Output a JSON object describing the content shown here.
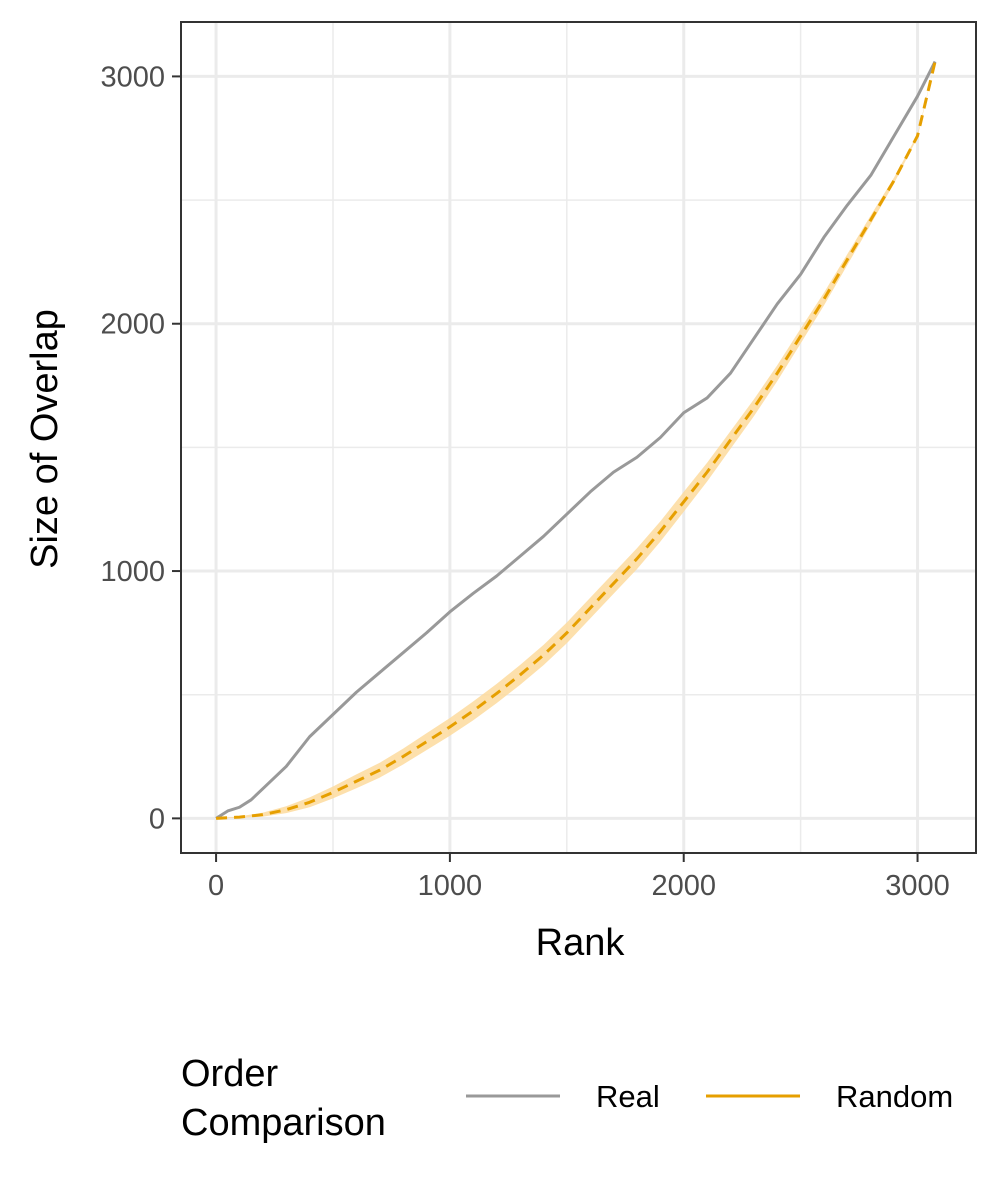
{
  "chart_data": {
    "type": "line",
    "xlabel": "Rank",
    "ylabel": "Size of Overlap",
    "xlim": [
      -150,
      3250
    ],
    "ylim": [
      -140,
      3220
    ],
    "x_ticks": [
      0,
      1000,
      2000,
      3000
    ],
    "x_tick_labels": [
      "0",
      "1000",
      "2000",
      "3000"
    ],
    "y_ticks": [
      0,
      1000,
      2000,
      3000
    ],
    "y_tick_labels": [
      "0",
      "1000",
      "2000",
      "3000"
    ],
    "grid": true,
    "legend": {
      "position": "bottom",
      "title_lines": [
        "Order",
        "Comparison"
      ],
      "entries": [
        "Real",
        "Random"
      ]
    },
    "colors": {
      "Real": "#999999",
      "Random": "#E69F00",
      "ribbon": "#FDDB9E",
      "grid": "#ebebeb",
      "border": "#333333"
    },
    "series": [
      {
        "name": "Real",
        "style": "solid",
        "x": [
          0,
          50,
          100,
          150,
          200,
          300,
          400,
          500,
          600,
          700,
          800,
          900,
          1000,
          1100,
          1200,
          1300,
          1400,
          1500,
          1600,
          1700,
          1800,
          1900,
          2000,
          2100,
          2200,
          2300,
          2400,
          2500,
          2600,
          2700,
          2800,
          2900,
          3000,
          3075
        ],
        "y": [
          0,
          30,
          45,
          75,
          120,
          210,
          330,
          420,
          510,
          590,
          670,
          750,
          835,
          910,
          980,
          1060,
          1140,
          1230,
          1320,
          1400,
          1460,
          1540,
          1640,
          1700,
          1800,
          1940,
          2080,
          2200,
          2350,
          2480,
          2600,
          2760,
          2920,
          3060
        ]
      },
      {
        "name": "Random",
        "style": "dashed",
        "x": [
          0,
          100,
          200,
          300,
          400,
          500,
          600,
          700,
          800,
          900,
          1000,
          1100,
          1200,
          1300,
          1400,
          1500,
          1600,
          1700,
          1800,
          1900,
          2000,
          2100,
          2200,
          2300,
          2400,
          2500,
          2600,
          2700,
          2800,
          2900,
          3000,
          3075
        ],
        "y": [
          0,
          5,
          15,
          35,
          65,
          105,
          150,
          195,
          250,
          310,
          370,
          435,
          505,
          580,
          660,
          750,
          850,
          950,
          1050,
          1160,
          1280,
          1400,
          1530,
          1660,
          1800,
          1950,
          2100,
          2260,
          2420,
          2580,
          2760,
          3060
        ],
        "band": [
          0,
          3,
          8,
          14,
          20,
          24,
          28,
          30,
          32,
          34,
          36,
          38,
          39,
          40,
          41,
          42,
          42,
          42,
          42,
          41,
          40,
          38,
          36,
          34,
          32,
          30,
          26,
          22,
          18,
          12,
          6,
          0
        ]
      }
    ]
  }
}
